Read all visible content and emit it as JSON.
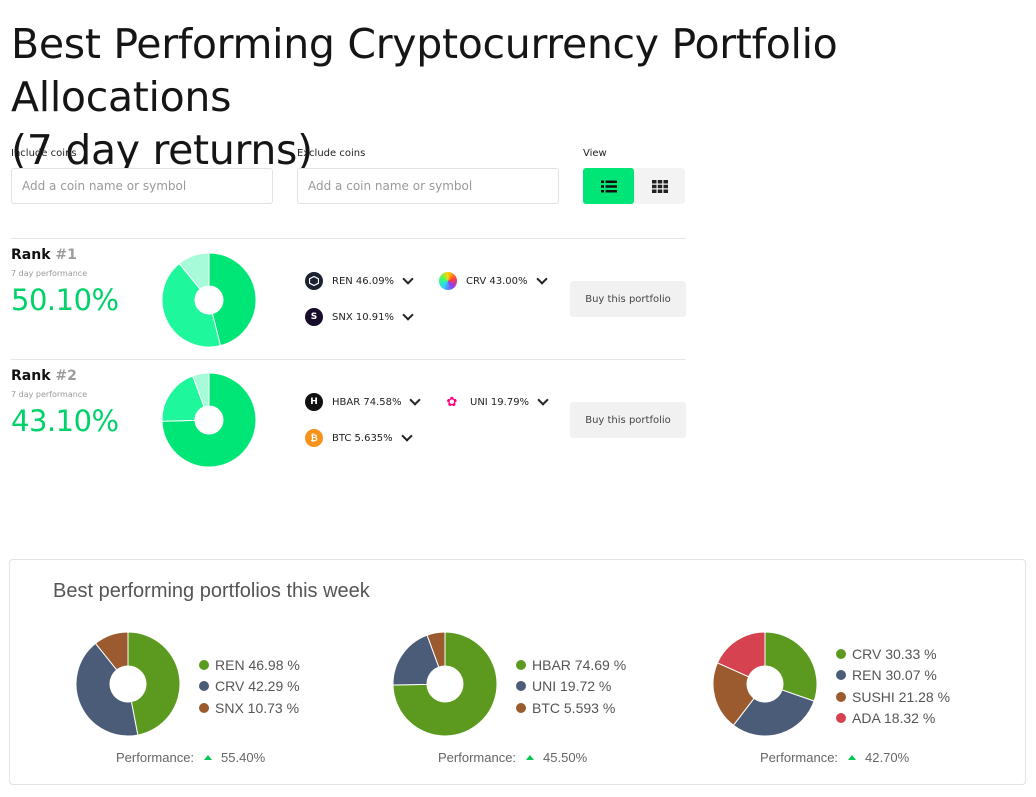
{
  "page": {
    "title_line1": "Best Performing Cryptocurrency Portfolio Allocations",
    "title_line2": "(7 day returns)"
  },
  "filters": {
    "include_label": "Include coins",
    "include_placeholder": "Add a coin name or symbol",
    "exclude_label": "Exclude coins",
    "exclude_placeholder": "Add a coin name or symbol",
    "view_label": "View"
  },
  "colors": {
    "accent": "#00e676",
    "perf_green": "#00d26a",
    "donut_dark": "#00e676",
    "donut_mid": "#1ef79b",
    "donut_light": "#a7fbd8"
  },
  "portfolios": [
    {
      "rank_label": "Rank",
      "rank_num": "#1",
      "perf_label": "7 day performance",
      "perf_value": "50.10%",
      "coins": [
        {
          "text": "REN 46.09%",
          "icon": "ren-icon",
          "value": 46.09
        },
        {
          "text": "CRV 43.00%",
          "icon": "crv-icon",
          "value": 43.0
        },
        {
          "text": "SNX 10.91%",
          "icon": "snx-icon",
          "value": 10.91
        }
      ],
      "buy_label": "Buy this portfolio"
    },
    {
      "rank_label": "Rank",
      "rank_num": "#2",
      "perf_label": "7 day performance",
      "perf_value": "43.10%",
      "coins": [
        {
          "text": "HBAR 74.58%",
          "icon": "hbar-icon",
          "value": 74.58
        },
        {
          "text": "UNI 19.79%",
          "icon": "uni-icon",
          "value": 19.79
        },
        {
          "text": "BTC 5.635%",
          "icon": "btc-icon",
          "value": 5.635
        }
      ],
      "buy_label": "Buy this portfolio"
    }
  ],
  "best_week": {
    "title": "Best performing portfolios this week",
    "perf_label": "Performance:",
    "portfolios": [
      {
        "legend": [
          {
            "text": "REN 46.98 %",
            "value": 46.98,
            "color": "#5b9a1f"
          },
          {
            "text": "CRV 42.29 %",
            "value": 42.29,
            "color": "#4a5c78"
          },
          {
            "text": "SNX 10.73 %",
            "value": 10.73,
            "color": "#9b5b2f"
          }
        ],
        "performance": "55.40%"
      },
      {
        "legend": [
          {
            "text": "HBAR 74.69 %",
            "value": 74.69,
            "color": "#5b9a1f"
          },
          {
            "text": "UNI 19.72 %",
            "value": 19.72,
            "color": "#4a5c78"
          },
          {
            "text": "BTC 5.593 %",
            "value": 5.593,
            "color": "#9b5b2f"
          }
        ],
        "performance": "45.50%"
      },
      {
        "legend": [
          {
            "text": "CRV 30.33 %",
            "value": 30.33,
            "color": "#5b9a1f"
          },
          {
            "text": "REN 30.07 %",
            "value": 30.07,
            "color": "#4a5c78"
          },
          {
            "text": "SUSHI 21.28 %",
            "value": 21.28,
            "color": "#9b5b2f"
          },
          {
            "text": "ADA 18.32 %",
            "value": 18.32,
            "color": "#d6424f"
          }
        ],
        "performance": "42.70%"
      }
    ]
  }
}
